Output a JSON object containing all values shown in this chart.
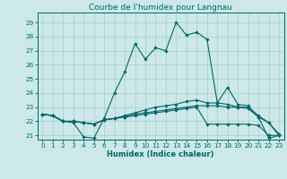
{
  "title": "Courbe de l'humidex pour Langnau",
  "xlabel": "Humidex (Indice chaleur)",
  "bg_color": "#cce8e8",
  "grid_color": "#aacccc",
  "line_color": "#006666",
  "xlim": [
    -0.5,
    23.5
  ],
  "ylim": [
    20.7,
    29.7
  ],
  "yticks": [
    21,
    22,
    23,
    24,
    25,
    26,
    27,
    28,
    29
  ],
  "xticks": [
    0,
    1,
    2,
    3,
    4,
    5,
    6,
    7,
    8,
    9,
    10,
    11,
    12,
    13,
    14,
    15,
    16,
    17,
    18,
    19,
    20,
    21,
    22,
    23
  ],
  "series": [
    [
      22.5,
      22.4,
      22.0,
      21.9,
      20.9,
      20.8,
      22.2,
      24.0,
      25.5,
      27.5,
      26.4,
      27.2,
      27.0,
      29.0,
      28.1,
      28.3,
      27.8,
      23.3,
      24.4,
      23.2,
      23.1,
      22.3,
      20.8,
      21.0
    ],
    [
      22.5,
      22.4,
      22.0,
      22.0,
      21.9,
      21.8,
      22.1,
      22.2,
      22.4,
      22.6,
      22.8,
      23.0,
      23.1,
      23.2,
      23.4,
      23.5,
      23.3,
      23.3,
      23.2,
      23.0,
      23.0,
      22.4,
      21.9,
      21.1
    ],
    [
      22.5,
      22.4,
      22.0,
      22.0,
      21.9,
      21.8,
      22.1,
      22.2,
      22.3,
      22.4,
      22.5,
      22.6,
      22.7,
      22.8,
      22.9,
      23.0,
      21.8,
      21.8,
      21.8,
      21.8,
      21.8,
      21.7,
      21.0,
      21.0
    ],
    [
      22.5,
      22.4,
      22.0,
      22.0,
      21.9,
      21.8,
      22.1,
      22.2,
      22.3,
      22.5,
      22.6,
      22.7,
      22.8,
      22.9,
      23.0,
      23.1,
      23.1,
      23.1,
      23.0,
      23.0,
      22.9,
      22.3,
      21.9,
      21.0
    ]
  ],
  "title_fontsize": 6.5,
  "tick_fontsize": 5.2,
  "xlabel_fontsize": 6.0
}
